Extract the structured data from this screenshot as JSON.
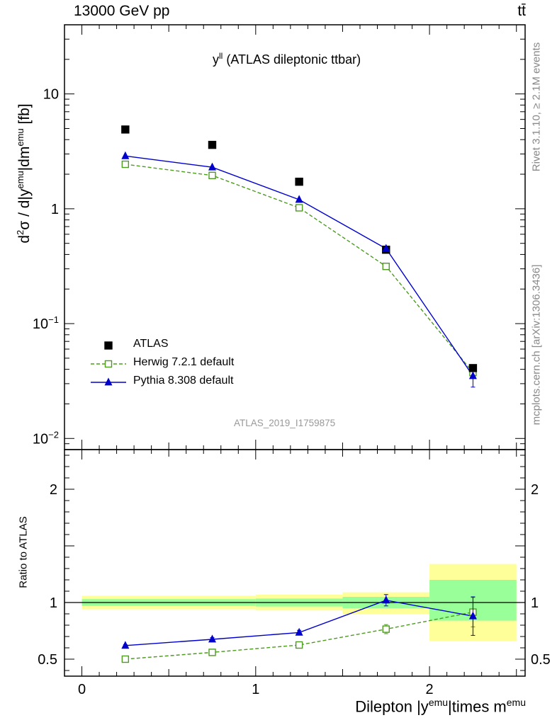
{
  "header": {
    "left": "13000 GeV pp",
    "right": "tt̄"
  },
  "side": {
    "rivet": "Rivet 3.1.10, ≥ 2.1M events",
    "mcplots": "mcplots.cern.ch [arXiv:1306.3436]"
  },
  "analysis_id": "ATLAS_2019_I1759875",
  "chart_data": [
    {
      "type": "scatter",
      "title": {
        "main": "y",
        "sup": "ll",
        "rest": " (ATLAS dileptonic ttbar)"
      },
      "ylabel": "d²σ / d|y^emu|dm^emu [fb]",
      "yscale": "log",
      "ylim": [
        0.008,
        40
      ],
      "xlim": [
        -0.1,
        2.55
      ],
      "yticks": [
        {
          "value": 0.01,
          "base": "10",
          "exp": "−2"
        },
        {
          "value": 0.1,
          "base": "10",
          "exp": "−1"
        },
        {
          "value": 1,
          "label": "1"
        },
        {
          "value": 10,
          "label": "10"
        }
      ],
      "series": [
        {
          "name": "ATLAS",
          "marker": "square-filled",
          "color": "#000000",
          "x": [
            0.25,
            0.75,
            1.25,
            1.75,
            2.25
          ],
          "y": [
            4.9,
            3.6,
            1.72,
            0.44,
            0.041
          ]
        },
        {
          "name": "Herwig 7.2.1 default",
          "marker": "square-open",
          "color": "#4d9b1f",
          "line": "dashed",
          "x": [
            0.25,
            0.75,
            1.25,
            1.75,
            2.25
          ],
          "y": [
            2.44,
            1.95,
            1.02,
            0.315,
            0.0375
          ]
        },
        {
          "name": "Pythia 8.308 default",
          "marker": "triangle-filled",
          "color": "#0000cc",
          "line": "solid",
          "x": [
            0.25,
            0.75,
            1.25,
            1.75,
            2.25
          ],
          "y": [
            2.88,
            2.3,
            1.2,
            0.45,
            0.035
          ],
          "err": [
            0,
            0,
            0,
            0,
            0.007
          ]
        }
      ]
    },
    {
      "type": "scatter",
      "ylabel": "Ratio to ATLAS",
      "ylim": [
        0.35,
        2.35
      ],
      "xlim": [
        -0.1,
        2.55
      ],
      "xlabel": {
        "main": "Dilepton |y",
        "sup1": "emu",
        "mid": "|times m",
        "sup2": "emu"
      },
      "yticks": [
        {
          "value": 0.5,
          "label": "0.5"
        },
        {
          "value": 1,
          "label": "1"
        },
        {
          "value": 2,
          "label": "2"
        }
      ],
      "xticks": [
        {
          "value": 0,
          "label": "0"
        },
        {
          "value": 1,
          "label": "1"
        },
        {
          "value": 2,
          "label": "2"
        }
      ],
      "bands": [
        {
          "x0": 0.0,
          "x1": 1.0,
          "yellow": [
            0.94,
            1.06
          ],
          "green": [
            0.97,
            1.03
          ]
        },
        {
          "x0": 1.0,
          "x1": 1.5,
          "yellow": [
            0.93,
            1.07
          ],
          "green": [
            0.965,
            1.035
          ]
        },
        {
          "x0": 1.5,
          "x1": 2.0,
          "yellow": [
            0.9,
            1.09
          ],
          "green": [
            0.95,
            1.05
          ]
        },
        {
          "x0": 2.0,
          "x1": 2.5,
          "yellow": [
            0.66,
            1.34
          ],
          "green": [
            0.84,
            1.2
          ]
        }
      ],
      "series": [
        {
          "name": "Herwig 7.2.1 default",
          "x": [
            0.25,
            0.75,
            1.25,
            1.75,
            2.25
          ],
          "y": [
            0.5,
            0.56,
            0.625,
            0.765,
            0.915
          ],
          "err": [
            0.01,
            0.012,
            0.015,
            0.04,
            0.13
          ]
        },
        {
          "name": "Pythia 8.308 default",
          "x": [
            0.25,
            0.75,
            1.25,
            1.75,
            2.25
          ],
          "y": [
            0.62,
            0.675,
            0.735,
            1.02,
            0.88
          ],
          "err": [
            0.008,
            0.015,
            0.02,
            0.05,
            0.17
          ]
        }
      ]
    }
  ]
}
